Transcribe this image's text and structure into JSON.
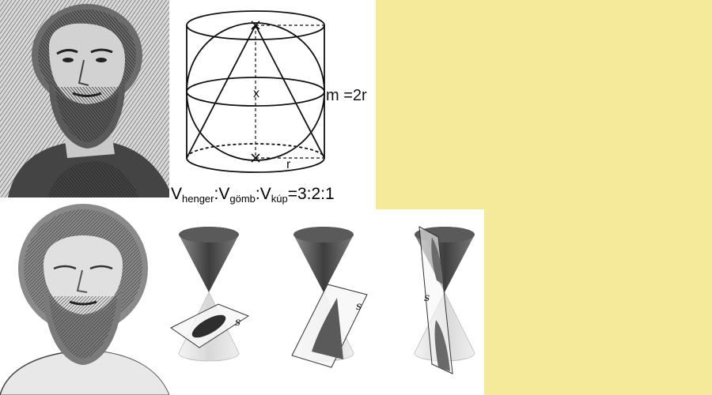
{
  "diagram": {
    "height_label": "m =2r",
    "axis_mark": "x",
    "radius_label": "r",
    "ratio": {
      "v1": "V",
      "sub1": "henger",
      "sep1": ":",
      "v2": "V",
      "sub2": "gömb",
      "sep2": ":",
      "v3": "V",
      "sub3": "kúp",
      "tail": "=3:2:1"
    }
  },
  "conics": {
    "plane_label_1": "s",
    "plane_label_2": "s",
    "plane_label_3": "s"
  },
  "colors": {
    "background": "#f5e99a",
    "panel": "#ffffff",
    "ink": "#111111",
    "cone_dark": "#555555",
    "cone_light": "#e4e4e4"
  }
}
